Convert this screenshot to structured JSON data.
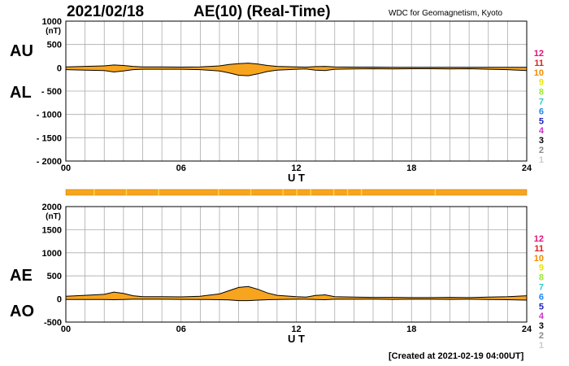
{
  "header": {
    "date": "2021/02/18",
    "title": "AE(10) (Real-Time)",
    "source": "WDC for Geomagnetism, Kyoto"
  },
  "footer": {
    "created": "[Created at 2021-02-19 04:00UT]"
  },
  "left_labels": {
    "top": [
      "AU",
      "AL"
    ],
    "bottom": [
      "AE",
      "AO"
    ]
  },
  "colors": {
    "fill": "#f7a51e",
    "line": "#000000",
    "grid": "#aaaaaa",
    "status_bar": "#f7a51e",
    "status_gap": "#ffd24d"
  },
  "legend": [
    {
      "label": "12",
      "color": "#e0147a"
    },
    {
      "label": "11",
      "color": "#e01f1f"
    },
    {
      "label": "10",
      "color": "#f28c00"
    },
    {
      "label": "9",
      "color": "#e8e800"
    },
    {
      "label": "8",
      "color": "#9be830"
    },
    {
      "label": "7",
      "color": "#33cccc"
    },
    {
      "label": "6",
      "color": "#2288ee"
    },
    {
      "label": "5",
      "color": "#2222bb"
    },
    {
      "label": "4",
      "color": "#cc33cc"
    },
    {
      "label": "3",
      "color": "#000000"
    },
    {
      "label": "2",
      "color": "#888888"
    },
    {
      "label": "1",
      "color": "#cccccc"
    }
  ],
  "chart_data": [
    {
      "type": "area",
      "xlabel": "U T",
      "ylabel": "(nT)",
      "x_ticks": [
        "00",
        "06",
        "12",
        "18",
        "24"
      ],
      "xlim": [
        0,
        24
      ],
      "ylim": [
        -2000,
        1000
      ],
      "y_ticks": [
        "1000",
        "500",
        "0",
        "- 500",
        "- 1000",
        "- 1500",
        "- 2000"
      ],
      "grid": true,
      "series": [
        {
          "name": "AU",
          "x": [
            0,
            1,
            2,
            2.5,
            3,
            3.5,
            4,
            5,
            6,
            7,
            8,
            8.5,
            9,
            9.5,
            10,
            10.5,
            11,
            12,
            12.5,
            13,
            13.5,
            14,
            15,
            16,
            17,
            18,
            19,
            20,
            21,
            22,
            23,
            24
          ],
          "values": [
            20,
            30,
            40,
            60,
            50,
            30,
            20,
            20,
            15,
            20,
            40,
            70,
            90,
            100,
            80,
            50,
            30,
            20,
            15,
            25,
            30,
            20,
            15,
            15,
            10,
            10,
            10,
            10,
            10,
            10,
            10,
            10
          ]
        },
        {
          "name": "AL",
          "x": [
            0,
            1,
            2,
            2.5,
            3,
            3.5,
            4,
            5,
            6,
            7,
            8,
            8.5,
            9,
            9.5,
            10,
            10.5,
            11,
            12,
            12.5,
            13,
            13.5,
            14,
            15,
            16,
            17,
            18,
            19,
            20,
            21,
            22,
            23,
            24
          ],
          "values": [
            -40,
            -50,
            -60,
            -90,
            -70,
            -40,
            -30,
            -30,
            -30,
            -40,
            -70,
            -110,
            -160,
            -170,
            -130,
            -80,
            -50,
            -30,
            -25,
            -50,
            -60,
            -30,
            -25,
            -20,
            -25,
            -20,
            -20,
            -25,
            -20,
            -30,
            -40,
            -60
          ]
        }
      ]
    },
    {
      "type": "area",
      "xlabel": "U T",
      "ylabel": "(nT)",
      "x_ticks": [
        "00",
        "06",
        "12",
        "18",
        "24"
      ],
      "xlim": [
        0,
        24
      ],
      "ylim": [
        -500,
        2000
      ],
      "y_ticks": [
        "2000",
        "1500",
        "1000",
        "500",
        "0",
        "-500"
      ],
      "grid": true,
      "series": [
        {
          "name": "AE",
          "x": [
            0,
            1,
            2,
            2.5,
            3,
            3.5,
            4,
            5,
            6,
            7,
            8,
            8.5,
            9,
            9.5,
            10,
            10.5,
            11,
            12,
            12.5,
            13,
            13.5,
            14,
            15,
            16,
            17,
            18,
            19,
            20,
            21,
            22,
            23,
            24
          ],
          "values": [
            60,
            80,
            100,
            150,
            120,
            70,
            50,
            50,
            45,
            60,
            110,
            180,
            250,
            270,
            210,
            130,
            80,
            50,
            40,
            75,
            90,
            50,
            40,
            35,
            35,
            30,
            30,
            35,
            30,
            40,
            50,
            70
          ]
        },
        {
          "name": "AO",
          "x": [
            0,
            1,
            2,
            2.5,
            3,
            3.5,
            4,
            5,
            6,
            7,
            8,
            8.5,
            9,
            9.5,
            10,
            10.5,
            11,
            12,
            12.5,
            13,
            13.5,
            14,
            15,
            16,
            17,
            18,
            19,
            20,
            21,
            22,
            23,
            24
          ],
          "values": [
            -10,
            -10,
            -10,
            -15,
            -10,
            -5,
            -5,
            -5,
            -8,
            -10,
            -15,
            -20,
            -35,
            -35,
            -25,
            -15,
            -10,
            -5,
            -5,
            -12,
            -15,
            -5,
            -5,
            -3,
            -8,
            -5,
            -5,
            -8,
            -5,
            -10,
            -15,
            -25
          ]
        }
      ]
    }
  ]
}
